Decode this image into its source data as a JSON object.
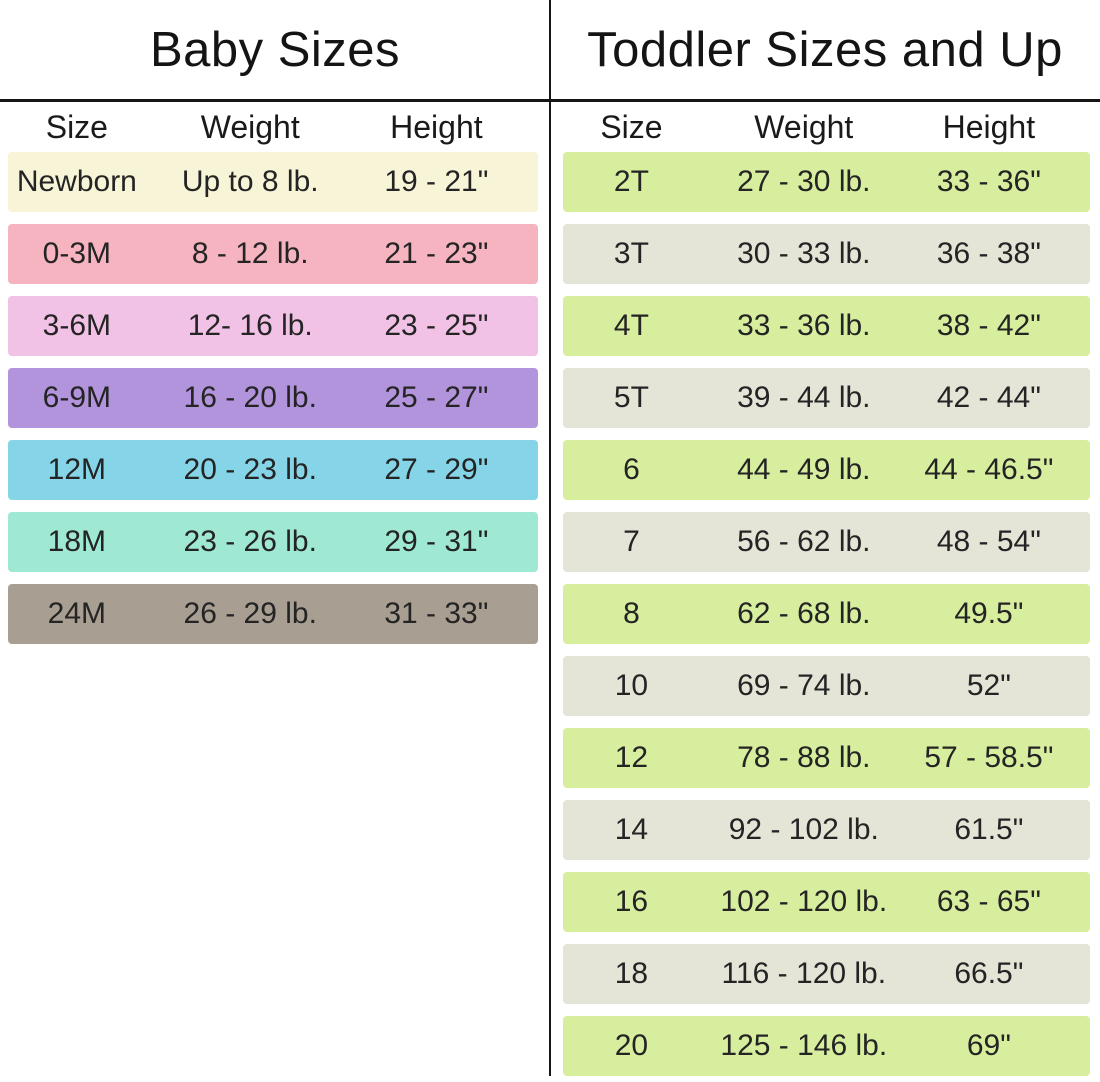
{
  "colors": {
    "divider_line": "#161616",
    "baby_row_colors": [
      "#f8f4d8",
      "#f6b4c0",
      "#f1c2e5",
      "#b294dc",
      "#86d4e8",
      "#9fe8d3",
      "#a89f92"
    ],
    "toddler_row_alt_colors": [
      "#d8ee9f",
      "#e4e4d7"
    ]
  },
  "baby": {
    "title": "Baby Sizes",
    "headers": [
      "Size",
      "Weight",
      "Height"
    ],
    "rows": [
      {
        "size": "Newborn",
        "weight": "Up to 8 lb.",
        "height": "19 - 21\"",
        "color": "#f8f4d8"
      },
      {
        "size": "0-3M",
        "weight": "8 - 12 lb.",
        "height": "21 - 23\"",
        "color": "#f6b4c0"
      },
      {
        "size": "3-6M",
        "weight": "12- 16 lb.",
        "height": "23 - 25\"",
        "color": "#f1c2e5"
      },
      {
        "size": "6-9M",
        "weight": "16 - 20 lb.",
        "height": "25 - 27\"",
        "color": "#b294dc"
      },
      {
        "size": "12M",
        "weight": "20 - 23 lb.",
        "height": "27 - 29\"",
        "color": "#86d4e8"
      },
      {
        "size": "18M",
        "weight": "23 - 26 lb.",
        "height": "29 - 31\"",
        "color": "#9fe8d3"
      },
      {
        "size": "24M",
        "weight": "26 - 29 lb.",
        "height": "31 - 33\"",
        "color": "#a89f92"
      }
    ]
  },
  "toddler": {
    "title": "Toddler Sizes and Up",
    "headers": [
      "Size",
      "Weight",
      "Height"
    ],
    "rows": [
      {
        "size": "2T",
        "weight": "27 - 30 lb.",
        "height": "33 - 36\"",
        "color": "#d8ee9f"
      },
      {
        "size": "3T",
        "weight": "30 - 33 lb.",
        "height": "36 - 38\"",
        "color": "#e4e4d7"
      },
      {
        "size": "4T",
        "weight": "33 - 36 lb.",
        "height": "38 - 42\"",
        "color": "#d8ee9f"
      },
      {
        "size": "5T",
        "weight": "39 - 44 lb.",
        "height": "42 - 44\"",
        "color": "#e4e4d7"
      },
      {
        "size": "6",
        "weight": "44 - 49 lb.",
        "height": "44 - 46.5\"",
        "color": "#d8ee9f"
      },
      {
        "size": "7",
        "weight": "56 - 62 lb.",
        "height": "48 - 54\"",
        "color": "#e4e4d7"
      },
      {
        "size": "8",
        "weight": "62 - 68 lb.",
        "height": "49.5\"",
        "color": "#d8ee9f"
      },
      {
        "size": "10",
        "weight": "69 - 74 lb.",
        "height": "52\"",
        "color": "#e4e4d7"
      },
      {
        "size": "12",
        "weight": "78 - 88 lb.",
        "height": "57 - 58.5\"",
        "color": "#d8ee9f"
      },
      {
        "size": "14",
        "weight": "92 - 102 lb.",
        "height": "61.5\"",
        "color": "#e4e4d7"
      },
      {
        "size": "16",
        "weight": "102 - 120 lb.",
        "height": "63 - 65\"",
        "color": "#d8ee9f"
      },
      {
        "size": "18",
        "weight": "116 - 120 lb.",
        "height": "66.5\"",
        "color": "#e4e4d7"
      },
      {
        "size": "20",
        "weight": "125 - 146 lb.",
        "height": "69\"",
        "color": "#d8ee9f"
      }
    ]
  }
}
